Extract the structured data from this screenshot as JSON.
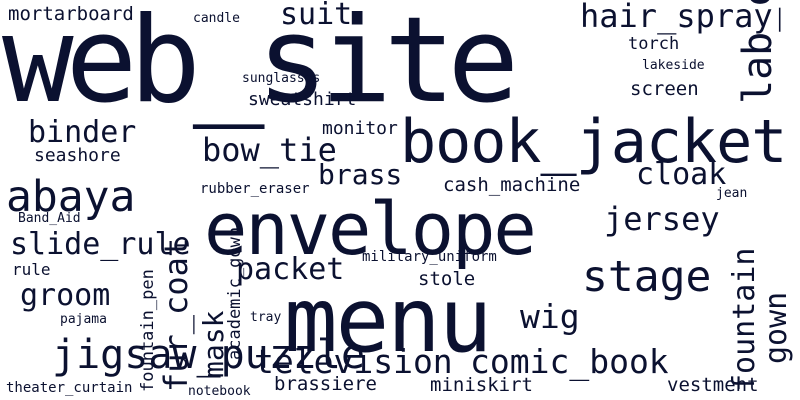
{
  "words": [
    {
      "id": "web_site",
      "text": "web_site"
    },
    {
      "id": "menu",
      "text": "menu"
    },
    {
      "id": "envelope",
      "text": "envelope"
    },
    {
      "id": "book_jacket",
      "text": "book_jacket"
    },
    {
      "id": "stage",
      "text": "stage"
    },
    {
      "id": "abaya",
      "text": "abaya"
    },
    {
      "id": "television",
      "text": "television"
    },
    {
      "id": "comic_book",
      "text": "comic_book"
    },
    {
      "id": "jigsaw_puzzle",
      "text": "jigsaw_puzzle"
    },
    {
      "id": "wig",
      "text": "wig"
    },
    {
      "id": "hair_spray",
      "text": "hair_spray"
    },
    {
      "id": "fur_coat",
      "text": "fur_coat"
    },
    {
      "id": "suit",
      "text": "suit"
    },
    {
      "id": "jersey",
      "text": "jersey"
    },
    {
      "id": "lab_coat",
      "text": "lab_coat"
    },
    {
      "id": "fountain",
      "text": "fountain"
    },
    {
      "id": "slide_rule",
      "text": "slide_rule"
    },
    {
      "id": "bow_tie",
      "text": "bow_tie"
    },
    {
      "id": "groom",
      "text": "groom"
    },
    {
      "id": "packet",
      "text": "packet"
    },
    {
      "id": "binder",
      "text": "binder"
    },
    {
      "id": "cloak",
      "text": "cloak"
    },
    {
      "id": "gown",
      "text": "gown"
    },
    {
      "id": "brass",
      "text": "brass"
    },
    {
      "id": "mask",
      "text": "mask"
    },
    {
      "id": "fountain_pen",
      "text": "fountain_pen"
    },
    {
      "id": "academic_gown",
      "text": "academic_gown"
    },
    {
      "id": "mortarboard",
      "text": "mortarboard"
    },
    {
      "id": "cash_machine",
      "text": "cash_machine"
    },
    {
      "id": "brassiere",
      "text": "brassiere"
    },
    {
      "id": "stole",
      "text": "stole"
    },
    {
      "id": "miniskirt",
      "text": "miniskirt"
    },
    {
      "id": "vestment",
      "text": "vestment"
    },
    {
      "id": "seashore",
      "text": "seashore"
    },
    {
      "id": "screen",
      "text": "screen"
    },
    {
      "id": "torch",
      "text": "torch"
    },
    {
      "id": "sweatshirt",
      "text": "sweatshirt"
    },
    {
      "id": "monitor",
      "text": "monitor"
    },
    {
      "id": "theater_curtain",
      "text": "theater_curtain"
    },
    {
      "id": "military_uniform",
      "text": "military_uniform"
    },
    {
      "id": "rubber_eraser",
      "text": "rubber_eraser"
    },
    {
      "id": "sunglasses",
      "text": "sunglasses"
    },
    {
      "id": "lakeside",
      "text": "lakeside"
    },
    {
      "id": "candle",
      "text": "candle"
    },
    {
      "id": "rule",
      "text": "rule"
    },
    {
      "id": "pajama",
      "text": "pajama"
    },
    {
      "id": "Band_Aid",
      "text": "Band_Aid"
    },
    {
      "id": "notebook",
      "text": "notebook"
    },
    {
      "id": "tray",
      "text": "tray"
    },
    {
      "id": "jean",
      "text": "jean"
    }
  ]
}
